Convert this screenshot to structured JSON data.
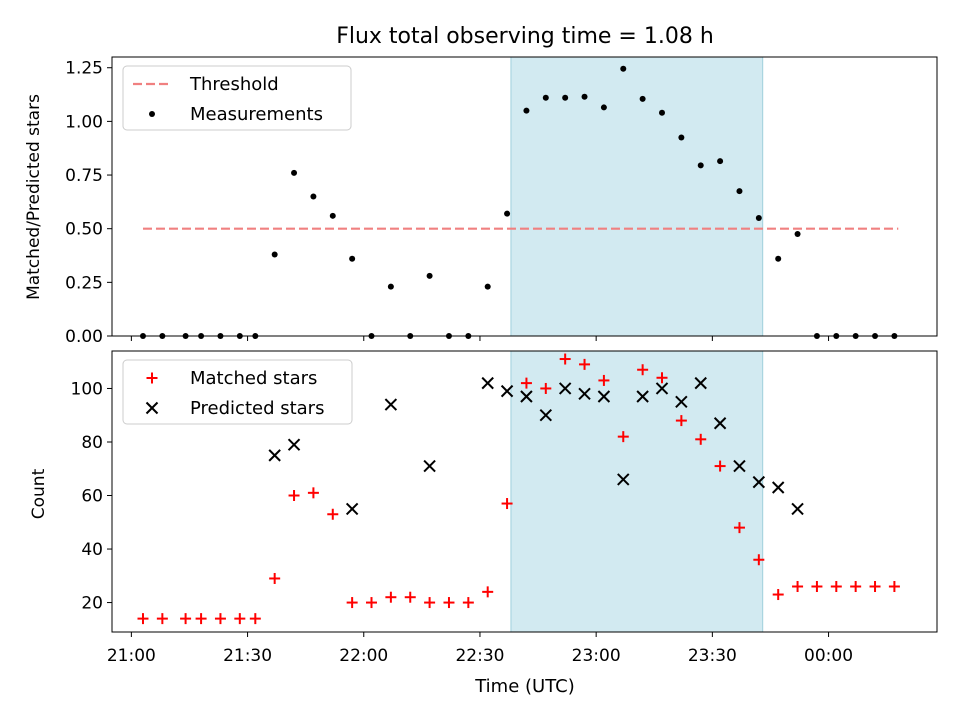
{
  "title": "Flux total observing time = 1.08 h",
  "xlabel": "Time (UTC)",
  "colors": {
    "threshold": "#f08080",
    "measurement": "#000000",
    "matched": "#ff0000",
    "predicted": "#000000",
    "window": "#add8e6"
  },
  "chart_data": [
    {
      "type": "scatter",
      "ylabel": "Matched/Predicted stars",
      "ylim": [
        0,
        1.3
      ],
      "yticks": [
        "0.00",
        "0.25",
        "0.50",
        "0.75",
        "1.00",
        "1.25"
      ],
      "yticks_values": [
        0,
        0.25,
        0.5,
        0.75,
        1.0,
        1.25
      ],
      "xlim": [
        "20:55",
        "00:28"
      ],
      "xticks": [],
      "highlight_window": [
        "22:38",
        "23:43"
      ],
      "legend": {
        "position": "upper left",
        "entries": [
          "Threshold",
          "Measurements"
        ]
      },
      "series": [
        {
          "name": "Threshold",
          "kind": "dashed-line",
          "x": [
            "21:03",
            "00:18"
          ],
          "y": [
            0.5,
            0.5
          ]
        },
        {
          "name": "Measurements",
          "kind": "dots",
          "x": [
            "21:03",
            "21:08",
            "21:14",
            "21:18",
            "21:23",
            "21:28",
            "21:32",
            "21:37",
            "21:42",
            "21:47",
            "21:52",
            "21:57",
            "22:02",
            "22:07",
            "22:12",
            "22:17",
            "22:22",
            "22:27",
            "22:32",
            "22:37",
            "22:42",
            "22:47",
            "22:52",
            "22:57",
            "23:02",
            "23:07",
            "23:12",
            "23:17",
            "23:22",
            "23:27",
            "23:32",
            "23:37",
            "23:42",
            "23:47",
            "23:52",
            "23:57",
            "00:02",
            "00:07",
            "00:12",
            "00:17"
          ],
          "y": [
            0,
            0,
            0,
            0,
            0,
            0,
            0,
            0.38,
            0.76,
            0.65,
            0.56,
            0.36,
            0,
            0.23,
            0,
            0.28,
            0,
            0,
            0.23,
            0.57,
            1.05,
            1.11,
            1.11,
            1.115,
            1.065,
            1.245,
            1.105,
            1.04,
            0.925,
            0.795,
            0.815,
            0.675,
            0.55,
            0.36,
            0.475,
            0,
            0,
            0,
            0,
            0
          ]
        }
      ]
    },
    {
      "type": "scatter",
      "ylabel": "Count",
      "ylim": [
        9,
        114
      ],
      "yticks": [
        "20",
        "40",
        "60",
        "80",
        "100"
      ],
      "yticks_values": [
        20,
        40,
        60,
        80,
        100
      ],
      "xlim": [
        "20:55",
        "00:28"
      ],
      "xticks": [
        "21:00",
        "21:30",
        "22:00",
        "22:30",
        "23:00",
        "23:30",
        "00:00"
      ],
      "highlight_window": [
        "22:38",
        "23:43"
      ],
      "legend": {
        "position": "upper left",
        "entries": [
          "Matched stars",
          "Predicted stars"
        ]
      },
      "series": [
        {
          "name": "Matched stars",
          "kind": "plus",
          "x": [
            "21:03",
            "21:08",
            "21:14",
            "21:18",
            "21:23",
            "21:28",
            "21:32",
            "21:37",
            "21:42",
            "21:47",
            "21:52",
            "21:57",
            "22:02",
            "22:07",
            "22:12",
            "22:17",
            "22:22",
            "22:27",
            "22:32",
            "22:37",
            "22:42",
            "22:47",
            "22:52",
            "22:57",
            "23:02",
            "23:07",
            "23:12",
            "23:17",
            "23:22",
            "23:27",
            "23:32",
            "23:37",
            "23:42",
            "23:47",
            "23:52",
            "23:57",
            "00:02",
            "00:07",
            "00:12",
            "00:17"
          ],
          "y": [
            14,
            14,
            14,
            14,
            14,
            14,
            14,
            29,
            60,
            61,
            53,
            20,
            20,
            22,
            22,
            20,
            20,
            20,
            24,
            57,
            102,
            100,
            111,
            109,
            103,
            82,
            107,
            104,
            88,
            81,
            71,
            48,
            36,
            23,
            26,
            26,
            26,
            26,
            26,
            26
          ]
        },
        {
          "name": "Predicted stars",
          "kind": "x",
          "x": [
            "21:37",
            "21:42",
            "21:57",
            "22:07",
            "22:17",
            "22:32",
            "22:37",
            "22:42",
            "22:47",
            "22:52",
            "22:57",
            "23:02",
            "23:07",
            "23:12",
            "23:17",
            "23:22",
            "23:27",
            "23:32",
            "23:37",
            "23:42",
            "23:47",
            "23:52"
          ],
          "y": [
            75,
            79,
            55,
            94,
            71,
            102,
            99,
            97,
            90,
            100,
            98,
            97,
            66,
            97,
            100,
            95,
            102,
            87,
            71,
            65,
            63,
            55
          ]
        }
      ]
    }
  ]
}
